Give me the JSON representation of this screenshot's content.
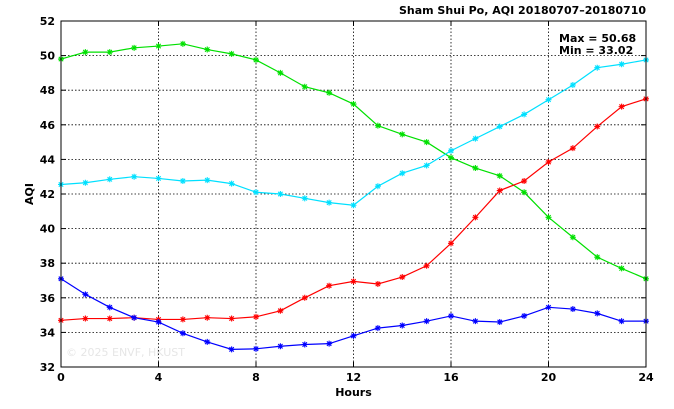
{
  "chart_data": {
    "type": "line",
    "title": "Sham Shui Po, AQI 20180707–20180710",
    "xlabel": "Hours",
    "ylabel": "AQI",
    "xlim": [
      0,
      24
    ],
    "ylim": [
      32,
      52
    ],
    "x_ticks": [
      "0",
      "4",
      "8",
      "12",
      "16",
      "20",
      "24"
    ],
    "y_ticks": [
      "32",
      "34",
      "36",
      "38",
      "40",
      "42",
      "44",
      "46",
      "48",
      "50",
      "52"
    ],
    "grid": true,
    "stats": {
      "max": "Max = 50.68",
      "min": "Min = 33.02"
    },
    "watermark": "© 2025  ENVF, HKUST",
    "x": [
      0,
      1,
      2,
      3,
      4,
      5,
      6,
      7,
      8,
      9,
      10,
      11,
      12,
      13,
      14,
      15,
      16,
      17,
      18,
      19,
      20,
      21,
      22,
      23,
      24
    ],
    "series": [
      {
        "color": "#00e000",
        "values": [
          49.8,
          50.2,
          50.2,
          50.45,
          50.55,
          50.68,
          50.35,
          50.1,
          49.75,
          49.0,
          48.2,
          47.85,
          47.2,
          45.95,
          45.45,
          45.0,
          44.1,
          43.5,
          43.05,
          42.1,
          40.65,
          39.5,
          38.35,
          37.7,
          37.1
        ]
      },
      {
        "color": "#00e0ff",
        "values": [
          42.55,
          42.65,
          42.85,
          43.0,
          42.9,
          42.75,
          42.8,
          42.6,
          42.1,
          42.0,
          41.75,
          41.5,
          41.35,
          42.45,
          43.2,
          43.65,
          44.5,
          45.2,
          45.9,
          46.6,
          47.45,
          48.3,
          49.3,
          49.5,
          49.75
        ]
      },
      {
        "color": "#ff0000",
        "values": [
          34.7,
          34.8,
          34.8,
          34.85,
          34.75,
          34.75,
          34.85,
          34.8,
          34.9,
          35.25,
          36.0,
          36.7,
          36.95,
          36.8,
          37.2,
          37.85,
          39.15,
          40.65,
          42.2,
          42.75,
          43.85,
          44.65,
          45.9,
          47.05,
          47.5
        ]
      },
      {
        "color": "#0000ff",
        "values": [
          37.1,
          36.2,
          35.45,
          34.85,
          34.6,
          33.95,
          33.45,
          33.02,
          33.05,
          33.2,
          33.3,
          33.35,
          33.8,
          34.25,
          34.4,
          34.65,
          34.95,
          34.65,
          34.6,
          34.95,
          35.45,
          35.35,
          35.1,
          34.65,
          34.65
        ]
      }
    ]
  }
}
